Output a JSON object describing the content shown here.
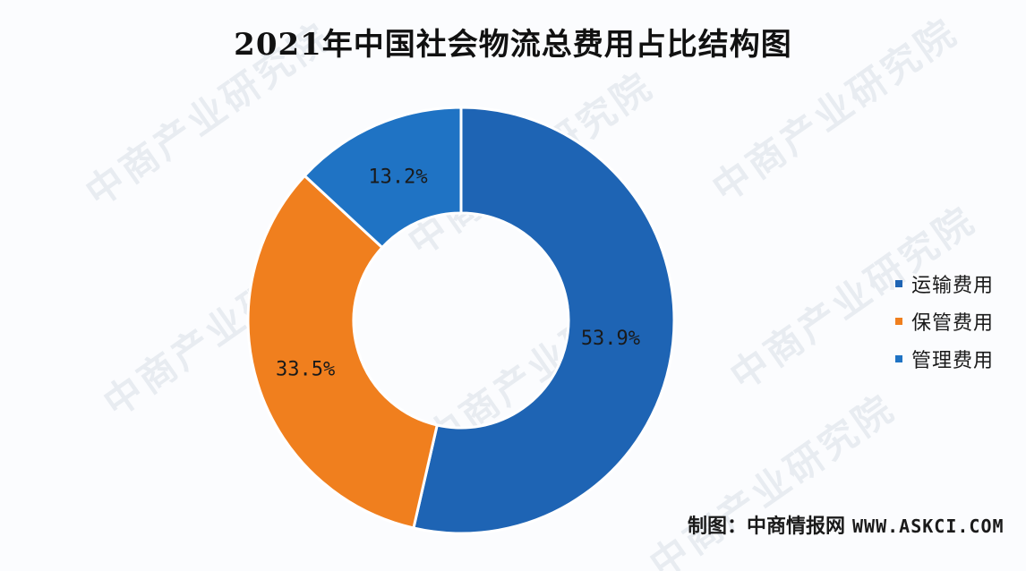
{
  "chart_data": {
    "type": "pie",
    "title": "2021年中国社会物流总费用占比结构图",
    "categories": [
      "运输费用",
      "保管费用",
      "管理费用"
    ],
    "values": [
      53.9,
      33.5,
      13.2
    ],
    "value_labels": [
      "53.9%",
      "33.5%",
      "13.2%"
    ],
    "colors": [
      "#1e64b4",
      "#f07f1e",
      "#1f73c4"
    ],
    "donut": true,
    "legend_position": "right"
  },
  "source": {
    "label": "制图：中商情报网",
    "site": "WWW.ASKCI.COM"
  },
  "watermark": {
    "text": "中商产业研究院"
  }
}
